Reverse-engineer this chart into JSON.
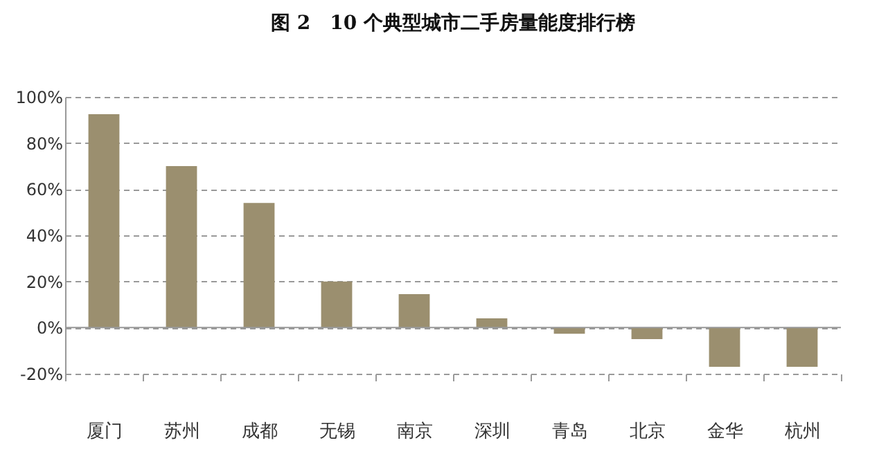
{
  "chart_data": {
    "type": "bar",
    "title": "图 2　10 个典型城市二手房量能度排行榜",
    "categories": [
      "厦门",
      "苏州",
      "成都",
      "无锡",
      "南京",
      "深圳",
      "青岛",
      "北京",
      "金华",
      "杭州"
    ],
    "values": [
      92.5,
      70,
      54,
      20,
      14.5,
      4,
      -2.7,
      -5,
      -17,
      -17
    ],
    "color": "#9b8f6f",
    "ylim": [
      -20,
      100
    ],
    "yticks": [
      {
        "value": -20,
        "label": "-20%"
      },
      {
        "value": 0,
        "label": "0%"
      },
      {
        "value": 20,
        "label": "20%"
      },
      {
        "value": 40,
        "label": "40%"
      },
      {
        "value": 60,
        "label": "60%"
      },
      {
        "value": 80,
        "label": "80%"
      },
      {
        "value": 100,
        "label": "100%"
      }
    ],
    "grid": "y"
  }
}
